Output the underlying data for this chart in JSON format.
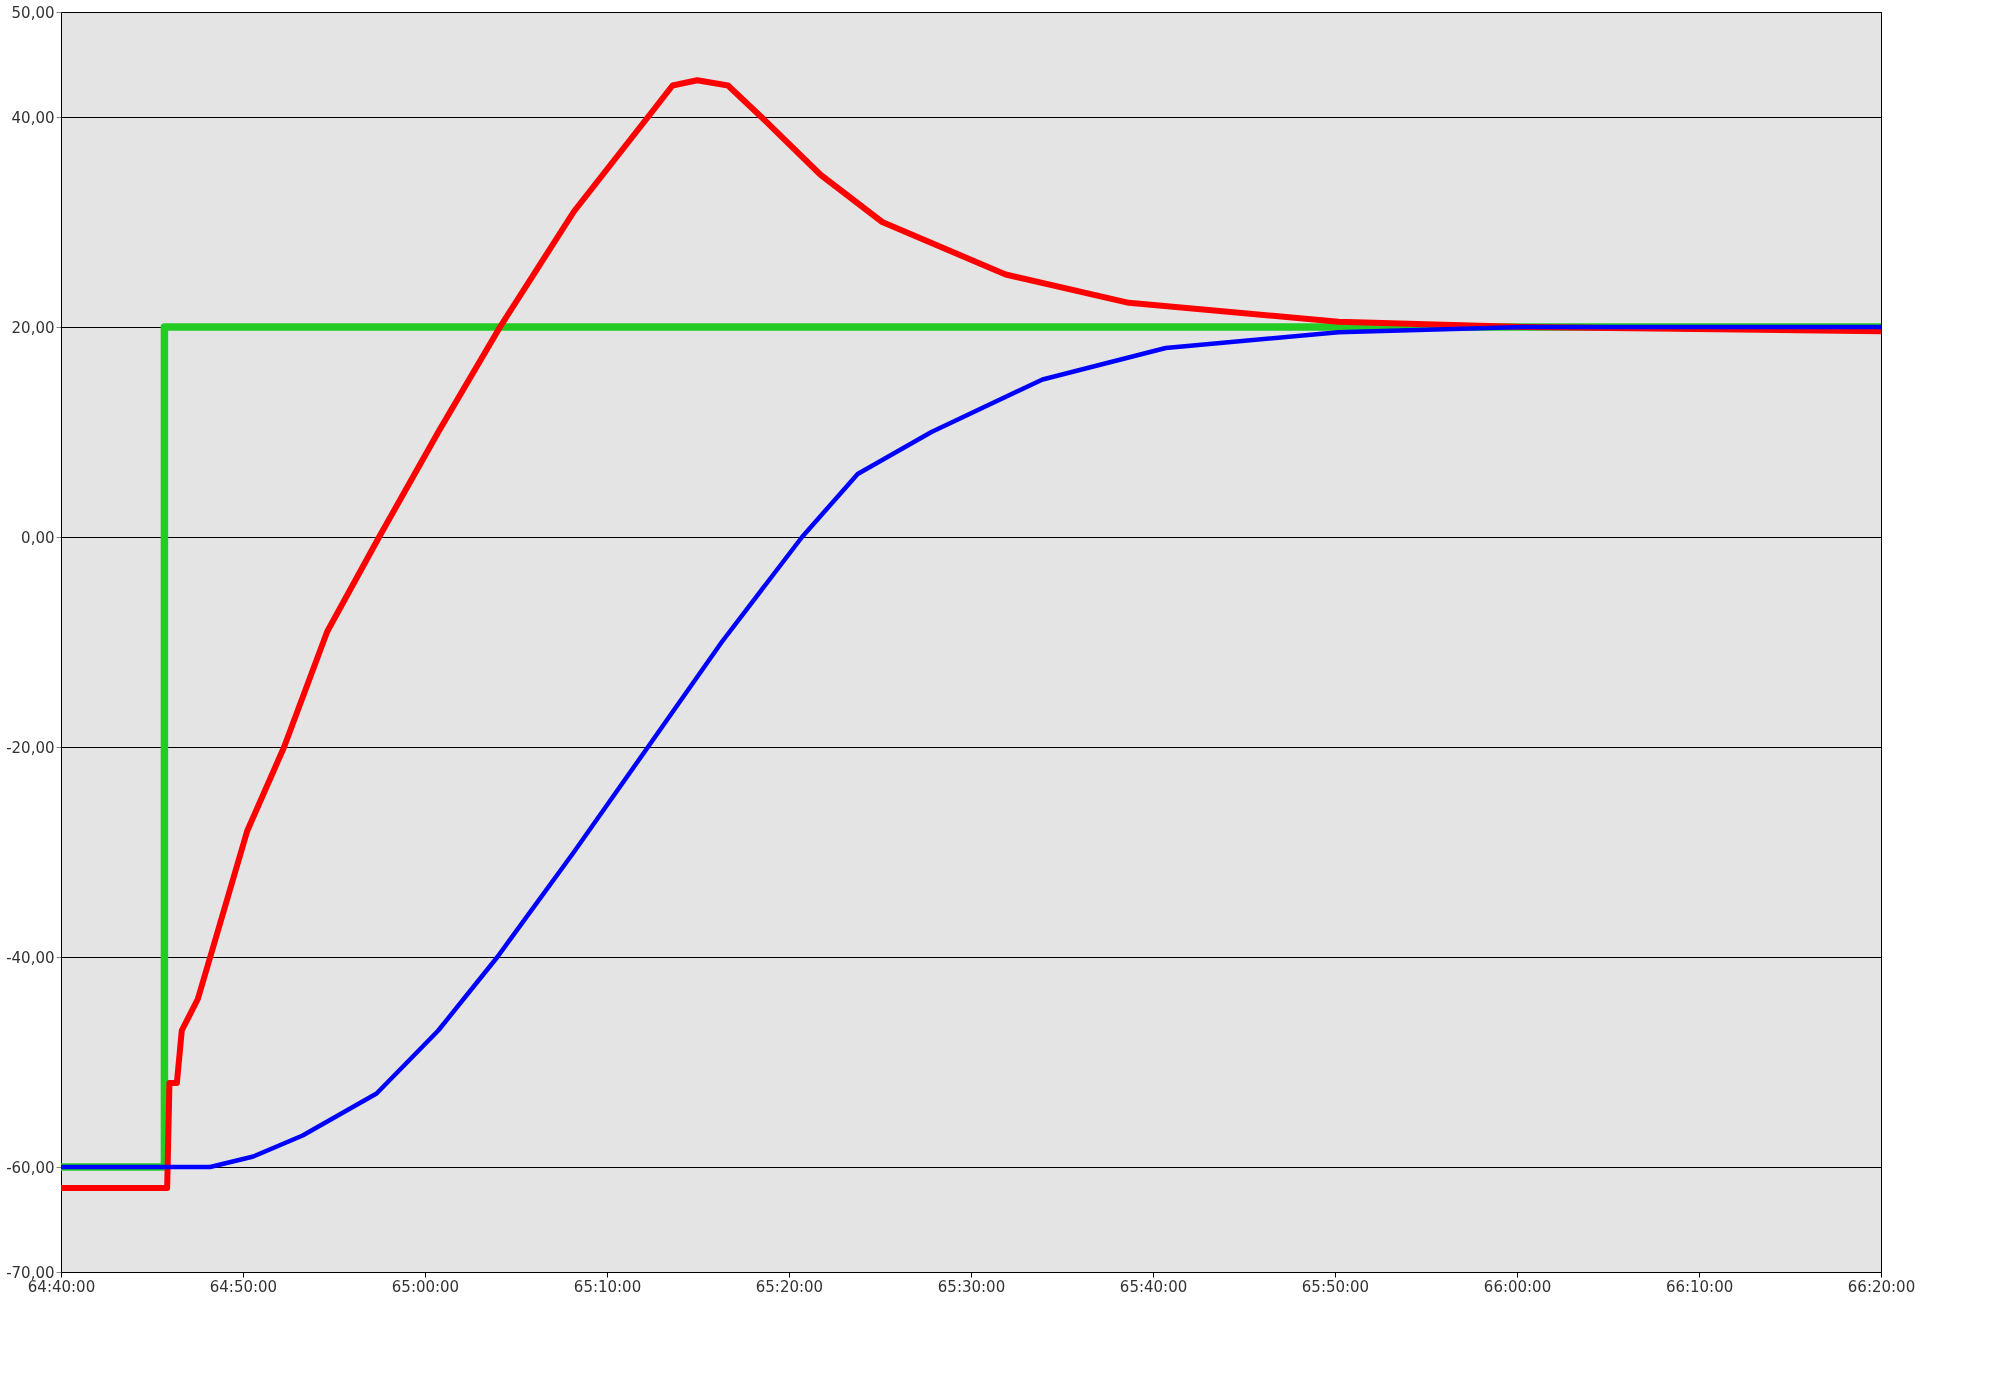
{
  "chart_data": {
    "type": "line",
    "xlim": [
      64.6667,
      66.3333
    ],
    "ylim": [
      -70,
      50
    ],
    "xticks": [
      {
        "value": 64.6667,
        "label": "64:40:00"
      },
      {
        "value": 64.8333,
        "label": "64:50:00"
      },
      {
        "value": 65.0,
        "label": "65:00:00"
      },
      {
        "value": 65.1667,
        "label": "65:10:00"
      },
      {
        "value": 65.3333,
        "label": "65:20:00"
      },
      {
        "value": 65.5,
        "label": "65:30:00"
      },
      {
        "value": 65.6667,
        "label": "65:40:00"
      },
      {
        "value": 65.8333,
        "label": "65:50:00"
      },
      {
        "value": 66.0,
        "label": "66:00:00"
      },
      {
        "value": 66.1667,
        "label": "66:10:00"
      },
      {
        "value": 66.3333,
        "label": "66:20:00"
      }
    ],
    "yticks": [
      {
        "value": 50,
        "label": "50,00"
      },
      {
        "value": 40,
        "label": "40,00"
      },
      {
        "value": 20,
        "label": "20,00"
      },
      {
        "value": 0,
        "label": "0,00"
      },
      {
        "value": -20,
        "label": "-20,00"
      },
      {
        "value": -40,
        "label": "-40,00"
      },
      {
        "value": -60,
        "label": "-60,00"
      },
      {
        "value": -70,
        "label": "-70,00"
      }
    ],
    "grid": "y",
    "legend": false,
    "marker": "none",
    "line_style": "solid",
    "series": [
      {
        "color": "#22cc22",
        "x": [
          64.6667,
          64.7614,
          64.7614,
          66.3333
        ],
        "values": [
          -60,
          -60,
          20,
          20
        ]
      },
      {
        "color": "#ff0000",
        "x": [
          64.6667,
          64.7639,
          64.766,
          64.7728,
          64.7773,
          64.792,
          64.809,
          64.8372,
          64.871,
          64.9105,
          64.958,
          65.0122,
          65.0687,
          65.1364,
          65.2042,
          65.2267,
          65.2493,
          65.2775,
          65.308,
          65.3622,
          65.4187,
          65.5317,
          65.6445,
          65.8365,
          66.0058,
          66.3333
        ],
        "values": [
          -62,
          -62,
          -52,
          -52,
          -47,
          -44,
          -38,
          -28,
          -20,
          -9,
          0,
          10,
          20,
          31,
          40,
          43,
          43.5,
          43,
          40,
          34.5,
          30,
          25,
          22.3,
          20.5,
          20,
          19.6
        ]
      },
      {
        "color": "#0000ff",
        "x": [
          64.6667,
          64.8033,
          64.8428,
          64.888,
          64.9557,
          65.0122,
          65.0663,
          65.1364,
          65.2042,
          65.2718,
          65.3453,
          65.3962,
          65.4638,
          65.5655,
          65.6783,
          65.8365,
          66.0058,
          66.3333
        ],
        "values": [
          -60,
          -60,
          -59,
          -57,
          -53,
          -47,
          -40,
          -30,
          -20,
          -10,
          0,
          6,
          10,
          15,
          18,
          19.5,
          20,
          20
        ]
      }
    ]
  }
}
